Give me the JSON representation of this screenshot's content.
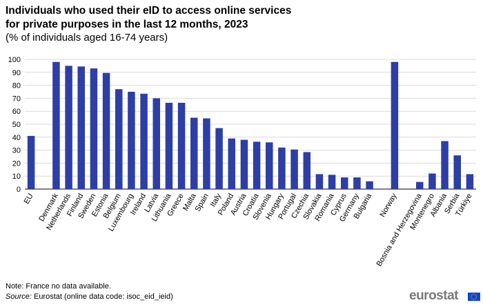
{
  "chart_data": {
    "type": "bar",
    "title_line1": "Individuals who used their eID to access  online services",
    "title_line2": "for private purposes in the last 12 months, 2023",
    "subtitle": "(% of individuals aged 16-74  years)",
    "ylim": [
      0,
      100
    ],
    "yticks": [
      0,
      10,
      20,
      30,
      40,
      50,
      60,
      70,
      80,
      90,
      100
    ],
    "grid": true,
    "bar_color": "#2d3ea5",
    "categories": [
      "EU",
      "",
      "Denmark",
      "Netherlands",
      "Finland",
      "Sweden",
      "Estonia",
      "Belgium",
      "Luxembourg",
      "Ireland",
      "Latvia",
      "Lithuania",
      "Greece",
      "Malta",
      "Spain",
      "Italy",
      "Poland",
      "Austria",
      "Croatia",
      "Slovenia",
      "Hungary",
      "Portugal",
      "Czechia",
      "Slovakia",
      "Romania",
      "Cyprus",
      "Germany",
      "Bulgaria",
      "",
      "Norway",
      "",
      "Bosnia and Herzegovina",
      "Montenegro",
      "Albania",
      "Serbia",
      "Türkiye"
    ],
    "values": [
      41,
      null,
      98,
      95,
      94.5,
      93,
      89.5,
      77,
      75,
      73.5,
      70,
      66.5,
      66.5,
      55,
      54.5,
      47,
      39,
      38,
      36.5,
      36,
      32,
      30.5,
      28.5,
      11.5,
      11,
      9,
      9,
      6,
      null,
      98,
      null,
      5.5,
      12,
      37,
      26,
      11.5
    ]
  },
  "footer": {
    "note": "Note: France no data available.",
    "source_label": "Source:",
    "source_text": " Eurostat (online data code: isoc_eid_ieid)",
    "logo_text": "eurostat"
  }
}
